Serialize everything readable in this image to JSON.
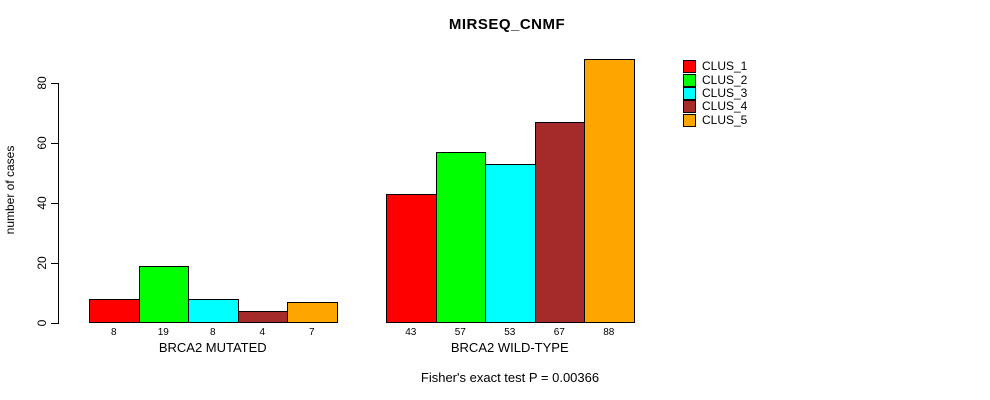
{
  "title": "MIRSEQ_CNMF",
  "chart_data": {
    "type": "bar",
    "title": "MIRSEQ_CNMF",
    "ylabel": "number of cases",
    "ylim": [
      0,
      88
    ],
    "yticks": [
      0,
      20,
      40,
      60,
      80
    ],
    "grid": false,
    "legend_position": "right-outside",
    "categories": [
      "BRCA2 MUTATED",
      "BRCA2 WILD-TYPE"
    ],
    "series": [
      {
        "name": "CLUS_1",
        "color": "#FF0000",
        "values": [
          8,
          43
        ]
      },
      {
        "name": "CLUS_2",
        "color": "#00FF00",
        "values": [
          19,
          57
        ]
      },
      {
        "name": "CLUS_3",
        "color": "#00FFFF",
        "values": [
          8,
          53
        ]
      },
      {
        "name": "CLUS_4",
        "color": "#A52A2A",
        "values": [
          4,
          67
        ]
      },
      {
        "name": "CLUS_5",
        "color": "#FFA500",
        "values": [
          7,
          88
        ]
      }
    ],
    "bar_value_labels": true,
    "footnote": "Fisher's exact test P = 0.00366"
  }
}
